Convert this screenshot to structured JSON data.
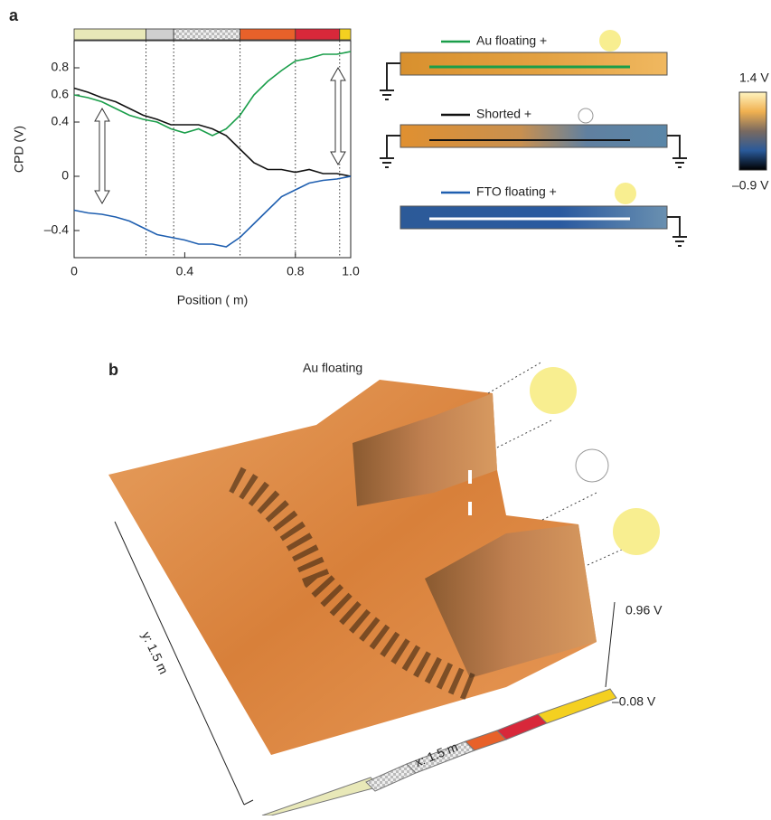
{
  "panel_labels": [
    "a",
    "b"
  ],
  "chart_data": {
    "type": "line",
    "x": [
      0,
      0.05,
      0.1,
      0.15,
      0.2,
      0.25,
      0.3,
      0.35,
      0.4,
      0.45,
      0.5,
      0.55,
      0.6,
      0.65,
      0.7,
      0.75,
      0.8,
      0.85,
      0.9,
      0.95,
      1.0
    ],
    "series": [
      {
        "name": "Au floating +",
        "color": "#1a9e4a",
        "values": [
          0.6,
          0.58,
          0.55,
          0.5,
          0.45,
          0.42,
          0.4,
          0.35,
          0.32,
          0.35,
          0.3,
          0.35,
          0.45,
          0.6,
          0.7,
          0.78,
          0.85,
          0.87,
          0.9,
          0.9,
          0.92
        ]
      },
      {
        "name": "Shorted +",
        "color": "#111111",
        "values": [
          0.65,
          0.62,
          0.58,
          0.55,
          0.5,
          0.45,
          0.42,
          0.38,
          0.38,
          0.38,
          0.35,
          0.3,
          0.2,
          0.1,
          0.05,
          0.05,
          0.03,
          0.05,
          0.02,
          0.02,
          0.0
        ]
      },
      {
        "name": "FTO floating +",
        "color": "#1f5fb0",
        "values": [
          -0.25,
          -0.27,
          -0.28,
          -0.3,
          -0.33,
          -0.38,
          -0.43,
          -0.45,
          -0.47,
          -0.5,
          -0.5,
          -0.52,
          -0.45,
          -0.35,
          -0.25,
          -0.15,
          -0.1,
          -0.05,
          -0.03,
          -0.02,
          0.0
        ]
      }
    ],
    "y_label": "CPD (V)",
    "x_label": "Position (  m)",
    "xlim": [
      0,
      1.0
    ],
    "ylim": [
      -0.6,
      1.0
    ],
    "xticks": [
      0,
      0.4,
      0.8,
      {
        "value": 1.0,
        "label": "1.0"
      }
    ],
    "yticks": [
      {
        "value": -0.4,
        "label": "–0.4"
      },
      0,
      0.4,
      0.6,
      0.8
    ],
    "boundaries": [
      0.26,
      0.36,
      0.6,
      0.8,
      0.96
    ],
    "layer_colors": [
      "#e8e8b8",
      "#cfcfcf",
      "#e4e4e4",
      "#e8612a",
      "#d8283a",
      "#f4d020"
    ]
  },
  "colorbar": {
    "max": "1.4 V",
    "min": "–0.9 V"
  },
  "surface_3d": {
    "title": "Au floating",
    "z_top": "0.96 V",
    "z_bottom": "–0.08 V",
    "x_label": "x: 1.5   m",
    "y_label": "y: 1.5   m"
  }
}
